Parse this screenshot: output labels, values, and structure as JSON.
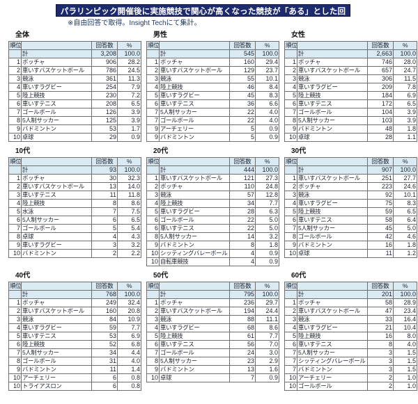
{
  "colors": {
    "title-bg": "#1E2A6E",
    "title-border": "#10163F",
    "title-text": "#FFFFFF",
    "note-text": "#1F3864",
    "label-text": "#111111",
    "table-text": "#1D2330",
    "table-border": "#6E6E6E",
    "shaded-row-bg": "#D9EAF3"
  },
  "chart_data": {
    "type": "table",
    "title": "パラリンピック開催後に実施競技で関心が高くなった競技が「ある」とした回答者",
    "note": "※自由回答で取得。Insight Techにて集計。",
    "columns": [
      "順位",
      "",
      "回答数",
      "%"
    ],
    "total_label": "計",
    "tables": [
      {
        "label": "全体",
        "total": {
          "count": "3,208",
          "pct": "100.0"
        },
        "rows": [
          [
            "1",
            "ボッチャ",
            "906",
            "28.2"
          ],
          [
            "2",
            "車いすバスケットボール",
            "786",
            "24.5"
          ],
          [
            "3",
            "競泳",
            "361",
            "11.3"
          ],
          [
            "4",
            "車いすラグビー",
            "254",
            "7.9"
          ],
          [
            "5",
            "陸上競技",
            "230",
            "7.2"
          ],
          [
            "6",
            "車いすテニス",
            "208",
            "6.5"
          ],
          [
            "7",
            "ゴールボール",
            "126",
            "3.9"
          ],
          [
            "8",
            "5人制サッカー",
            "125",
            "3.9"
          ],
          [
            "9",
            "バドミントン",
            "53",
            "1.7"
          ],
          [
            "10",
            "卓球",
            "29",
            "0.9"
          ]
        ]
      },
      {
        "label": "男性",
        "total": {
          "count": "545",
          "pct": "100.0"
        },
        "rows": [
          [
            "1",
            "ボッチャ",
            "160",
            "29.4"
          ],
          [
            "2",
            "車いすバスケットボール",
            "129",
            "23.7"
          ],
          [
            "3",
            "競泳",
            "55",
            "10.1"
          ],
          [
            "4",
            "陸上競技",
            "46",
            "8.4"
          ],
          [
            "5",
            "車いすラグビー",
            "45",
            "8.3"
          ],
          [
            "6",
            "車いすテニス",
            "36",
            "6.6"
          ],
          [
            "7",
            "5人制サッカー",
            "22",
            "4.0"
          ],
          [
            "7",
            "ゴールボール",
            "22",
            "4.0"
          ],
          [
            "9",
            "アーチェリー",
            "5",
            "0.9"
          ],
          [
            "9",
            "バドミントン",
            "5",
            "0.9"
          ]
        ]
      },
      {
        "label": "女性",
        "total": {
          "count": "2,663",
          "pct": "100.0"
        },
        "rows": [
          [
            "1",
            "ボッチャ",
            "746",
            "28.0"
          ],
          [
            "2",
            "車いすバスケットボール",
            "657",
            "24.7"
          ],
          [
            "3",
            "競泳",
            "306",
            "11.5"
          ],
          [
            "4",
            "車いすラグビー",
            "209",
            "7.8"
          ],
          [
            "5",
            "陸上競技",
            "184",
            "6.9"
          ],
          [
            "6",
            "車いすテニス",
            "172",
            "6.5"
          ],
          [
            "7",
            "ゴールボール",
            "104",
            "3.9"
          ],
          [
            "8",
            "5人制サッカー",
            "103",
            "3.9"
          ],
          [
            "9",
            "バドミントン",
            "48",
            "1.8"
          ],
          [
            "10",
            "卓球",
            "28",
            "1.1"
          ]
        ]
      },
      {
        "label": "10代",
        "total": {
          "count": "93",
          "pct": "100.0"
        },
        "rows": [
          [
            "1",
            "ボッチャ",
            "30",
            "32.3"
          ],
          [
            "2",
            "車いすバスケットボール",
            "13",
            "14.0"
          ],
          [
            "3",
            "車いすテニス",
            "11",
            "11.8"
          ],
          [
            "4",
            "陸上競技",
            "8",
            "8.6"
          ],
          [
            "5",
            "水泳",
            "7",
            "7.5"
          ],
          [
            "6",
            "5人制サッカー",
            "6",
            "6.5"
          ],
          [
            "7",
            "ゴールボール",
            "5",
            "5.4"
          ],
          [
            "8",
            "卓球",
            "4",
            "4.3"
          ],
          [
            "9",
            "車いすラグビー",
            "3",
            "3.2"
          ],
          [
            "10",
            "バドミントン",
            "2",
            "2.2"
          ]
        ]
      },
      {
        "label": "20代",
        "total": {
          "count": "444",
          "pct": "100.0"
        },
        "rows": [
          [
            "1",
            "車いすバスケットボール",
            "121",
            "27.3"
          ],
          [
            "2",
            "ボッチャ",
            "110",
            "24.8"
          ],
          [
            "3",
            "競泳",
            "57",
            "12.8"
          ],
          [
            "4",
            "陸上競技",
            "34",
            "7.7"
          ],
          [
            "5",
            "車いすラグビー",
            "28",
            "6.3"
          ],
          [
            "6",
            "ゴールボール",
            "22",
            "5.0"
          ],
          [
            "6",
            "車いすテニス",
            "22",
            "5.0"
          ],
          [
            "8",
            "5人制サッカー",
            "14",
            "3.2"
          ],
          [
            "9",
            "バドミントン",
            "8",
            "1.8"
          ],
          [
            "10",
            "シッティングバレーボール",
            "4",
            "0.9"
          ],
          [
            "10",
            "自転車競技",
            "4",
            "0.9"
          ]
        ]
      },
      {
        "label": "30代",
        "total": {
          "count": "907",
          "pct": "100.0"
        },
        "rows": [
          [
            "1",
            "車いすバスケットボール",
            "251",
            "27.7"
          ],
          [
            "2",
            "ボッチャ",
            "223",
            "24.6"
          ],
          [
            "3",
            "競泳",
            "92",
            "10.1"
          ],
          [
            "4",
            "車いすラグビー",
            "75",
            "8.3"
          ],
          [
            "5",
            "陸上競技",
            "59",
            "6.5"
          ],
          [
            "6",
            "車いすテニス",
            "58",
            "6.4"
          ],
          [
            "7",
            "5人制サッカー",
            "45",
            "5.0"
          ],
          [
            "8",
            "ゴールボール",
            "42",
            "4.6"
          ],
          [
            "9",
            "バドミントン",
            "16",
            "1.8"
          ],
          [
            "10",
            "卓球",
            "11",
            "1.2"
          ]
        ]
      },
      {
        "label": "40代",
        "total": {
          "count": "768",
          "pct": "100.0"
        },
        "rows": [
          [
            "1",
            "ボッチャ",
            "249",
            "32.4"
          ],
          [
            "2",
            "車いすバスケットボール",
            "160",
            "20.8"
          ],
          [
            "3",
            "競泳",
            "84",
            "10.9"
          ],
          [
            "4",
            "車いすラグビー",
            "59",
            "7.7"
          ],
          [
            "5",
            "車いすテニス",
            "53",
            "6.9"
          ],
          [
            "6",
            "陸上競技",
            "52",
            "6.8"
          ],
          [
            "7",
            "5人制サッカー",
            "34",
            "4.4"
          ],
          [
            "8",
            "ゴールボール",
            "31",
            "4.0"
          ],
          [
            "9",
            "バドミントン",
            "11",
            "1.4"
          ],
          [
            "10",
            "アーチェリー",
            "6",
            "0.8"
          ],
          [
            "10",
            "トライアスロン",
            "6",
            "0.8"
          ]
        ]
      },
      {
        "label": "50代",
        "total": {
          "count": "795",
          "pct": "100.0"
        },
        "rows": [
          [
            "1",
            "ボッチャ",
            "236",
            "29.7"
          ],
          [
            "2",
            "車いすバスケットボール",
            "194",
            "24.4"
          ],
          [
            "3",
            "競泳",
            "88",
            "11.1"
          ],
          [
            "4",
            "車いすラグビー",
            "68",
            "8.6"
          ],
          [
            "5",
            "陸上競技",
            "61",
            "7.7"
          ],
          [
            "6",
            "車いすテニス",
            "56",
            "7.0"
          ],
          [
            "7",
            "ゴールボール",
            "24",
            "3.0"
          ],
          [
            "8",
            "5人制サッカー",
            "23",
            "2.9"
          ],
          [
            "9",
            "バドミントン",
            "13",
            "1.6"
          ],
          [
            "10",
            "卓球",
            "7",
            "0.9"
          ]
        ]
      },
      {
        "label": "60代",
        "total": {
          "count": "201",
          "pct": "100.0"
        },
        "rows": [
          [
            "1",
            "ボッチャ",
            "58",
            "28.9"
          ],
          [
            "2",
            "車いすバスケットボール",
            "47",
            "23.4"
          ],
          [
            "3",
            "競泳",
            "33",
            "16.4"
          ],
          [
            "4",
            "車いすラグビー",
            "21",
            "10.4"
          ],
          [
            "5",
            "陸上競技",
            "16",
            "8.0"
          ],
          [
            "6",
            "車いすテニス",
            "8",
            "4.0"
          ],
          [
            "7",
            "5人制サッカー",
            "3",
            "1.5"
          ],
          [
            "7",
            "シッティングバレーボール",
            "3",
            "1.5"
          ],
          [
            "7",
            "バドミントン",
            "3",
            "1.5"
          ],
          [
            "10",
            "アーチェリー",
            "2",
            "1.0"
          ],
          [
            "10",
            "ゴールボール",
            "2",
            "1.0"
          ]
        ]
      }
    ]
  }
}
